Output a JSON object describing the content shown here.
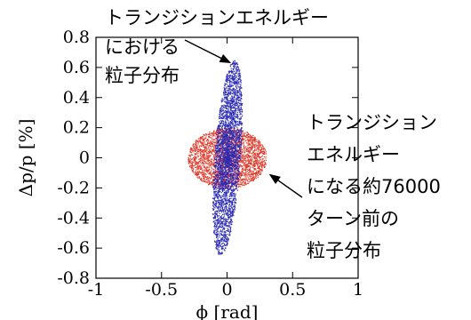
{
  "chart_data": {
    "type": "scatter",
    "title": "",
    "xlabel": "ϕ [rad]",
    "ylabel": "Δp/p [%]",
    "xlim": [
      -1,
      1
    ],
    "ylim": [
      -0.8,
      0.8
    ],
    "x_ticks": [
      -1,
      -0.5,
      0,
      0.5,
      1
    ],
    "x_tick_labels": [
      "-1",
      "-0.5",
      "0",
      "0.5",
      "1"
    ],
    "y_ticks": [
      -0.8,
      -0.6,
      -0.4,
      -0.2,
      0,
      0.2,
      0.4,
      0.6,
      0.8
    ],
    "y_tick_labels": [
      "-0.8",
      "-0.6",
      "-0.4",
      "-0.2",
      "0",
      "0.2",
      "0.4",
      "0.6",
      "0.8"
    ],
    "grid": false,
    "series": [
      {
        "color": "#e03a2a",
        "shape": "ellipse",
        "x_range": [
          -0.3,
          0.3
        ],
        "y_range": [
          -0.2,
          0.2
        ]
      },
      {
        "color": "#2a2ab4",
        "shape": "tilted-ellipse",
        "x_range": [
          -0.1,
          0.1
        ],
        "y_range": [
          -0.65,
          0.65
        ]
      }
    ],
    "annotations": [
      {
        "text_lines": [
          "トランジションエネルギー",
          "における",
          "粒子分布"
        ],
        "arrow_to": [
          0.05,
          0.62
        ]
      },
      {
        "text_lines": [
          "トランジション",
          "エネルギー",
          "になる約76000",
          "ターン前の",
          "粒子分布"
        ],
        "arrow_to": [
          0.3,
          -0.1
        ]
      }
    ]
  }
}
